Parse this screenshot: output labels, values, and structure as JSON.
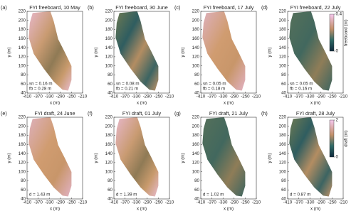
{
  "chart_data": [
    {
      "type": "map",
      "panel_label": "(a)",
      "title": "FYI freeboard, 10 May",
      "x_label": "x (m)",
      "y_label": "y (m)",
      "xlim": [
        -410,
        -210
      ],
      "ylim": [
        40,
        220
      ],
      "xticks": [
        -410,
        -370,
        -330,
        -290,
        -250,
        -210
      ],
      "yticks": [
        40,
        60,
        80,
        100,
        120,
        140,
        160,
        180,
        200,
        220
      ],
      "annotations": [
        "sn = 0.16 m",
        "fb = 0.28 m"
      ]
    },
    {
      "type": "map",
      "panel_label": "(b)",
      "title": "FYI freeboard, 30 June",
      "x_label": "x (m)",
      "y_label": "y (m)",
      "xlim": [
        -410,
        -210
      ],
      "ylim": [
        40,
        220
      ],
      "xticks": [
        -410,
        -370,
        -330,
        -290,
        -250,
        -210
      ],
      "yticks": [
        40,
        60,
        80,
        100,
        120,
        140,
        160,
        180,
        200,
        220
      ],
      "annotations": [
        "sn = 0.08 m",
        "fb = 0.21 m"
      ]
    },
    {
      "type": "map",
      "panel_label": "(c)",
      "title": "FYI freeboard, 17 July",
      "x_label": "x (m)",
      "y_label": "y (m)",
      "xlim": [
        -410,
        -210
      ],
      "ylim": [
        40,
        220
      ],
      "xticks": [
        -410,
        -370,
        -330,
        -290,
        -250,
        -210
      ],
      "yticks": [
        40,
        60,
        80,
        100,
        120,
        140,
        160,
        180,
        200,
        220
      ],
      "annotations": [
        "sn = 0.05 m",
        "fb = 0.18 m"
      ]
    },
    {
      "type": "map",
      "panel_label": "(d)",
      "title": "FYI freeboard, 22 July",
      "x_label": "x (m)",
      "y_label": "y (m)",
      "xlim": [
        -410,
        -210
      ],
      "ylim": [
        40,
        220
      ],
      "xticks": [
        -410,
        -370,
        -330,
        -290,
        -250,
        -210
      ],
      "yticks": [
        40,
        60,
        80,
        100,
        120,
        140,
        160,
        180,
        200,
        220
      ],
      "annotations": [
        "sn = 0.05 m",
        "fb = 0.16 m"
      ],
      "colorbar": {
        "label": "freeboard (m)",
        "lim": [
          0,
          0.4
        ],
        "ticks": [
          0,
          0.4
        ]
      }
    },
    {
      "type": "map",
      "panel_label": "(e)",
      "title": "FYI draft, 24 June",
      "x_label": "x (m)",
      "y_label": "y (m)",
      "xlim": [
        -410,
        -210
      ],
      "ylim": [
        40,
        220
      ],
      "xticks": [
        -410,
        -370,
        -330,
        -290,
        -250,
        -210
      ],
      "yticks": [
        40,
        60,
        80,
        100,
        120,
        140,
        160,
        180,
        200,
        220
      ],
      "annotations": [
        "d = 1.43 m"
      ]
    },
    {
      "type": "map",
      "panel_label": "(f)",
      "title": "FYI draft, 01 July",
      "x_label": "x (m)",
      "y_label": "y (m)",
      "xlim": [
        -410,
        -210
      ],
      "ylim": [
        40,
        220
      ],
      "xticks": [
        -410,
        -370,
        -330,
        -290,
        -250,
        -210
      ],
      "yticks": [
        40,
        60,
        80,
        100,
        120,
        140,
        160,
        180,
        200,
        220
      ],
      "annotations": [
        "d = 1.39 m"
      ]
    },
    {
      "type": "map",
      "panel_label": "(g)",
      "title": "FYI draft, 21 July",
      "x_label": "x (m)",
      "y_label": "y (m)",
      "xlim": [
        -410,
        -210
      ],
      "ylim": [
        40,
        220
      ],
      "xticks": [
        -410,
        -370,
        -330,
        -290,
        -250,
        -210
      ],
      "yticks": [
        40,
        60,
        80,
        100,
        120,
        140,
        160,
        180,
        200,
        220
      ],
      "annotations": [
        "d = 1.02 m"
      ]
    },
    {
      "type": "map",
      "panel_label": "(h)",
      "title": "FYI draft, 28 July",
      "x_label": "x (m)",
      "y_label": "y (m)",
      "xlim": [
        -410,
        -210
      ],
      "ylim": [
        40,
        220
      ],
      "xticks": [
        -410,
        -370,
        -330,
        -290,
        -250,
        -210
      ],
      "yticks": [
        40,
        60,
        80,
        100,
        120,
        140,
        160,
        180,
        200,
        220
      ],
      "annotations": [
        "d = 0.87 m"
      ],
      "colorbar": {
        "label": "draft (m)",
        "lim": [
          0,
          2
        ],
        "ticks": [
          0,
          2
        ]
      }
    }
  ]
}
